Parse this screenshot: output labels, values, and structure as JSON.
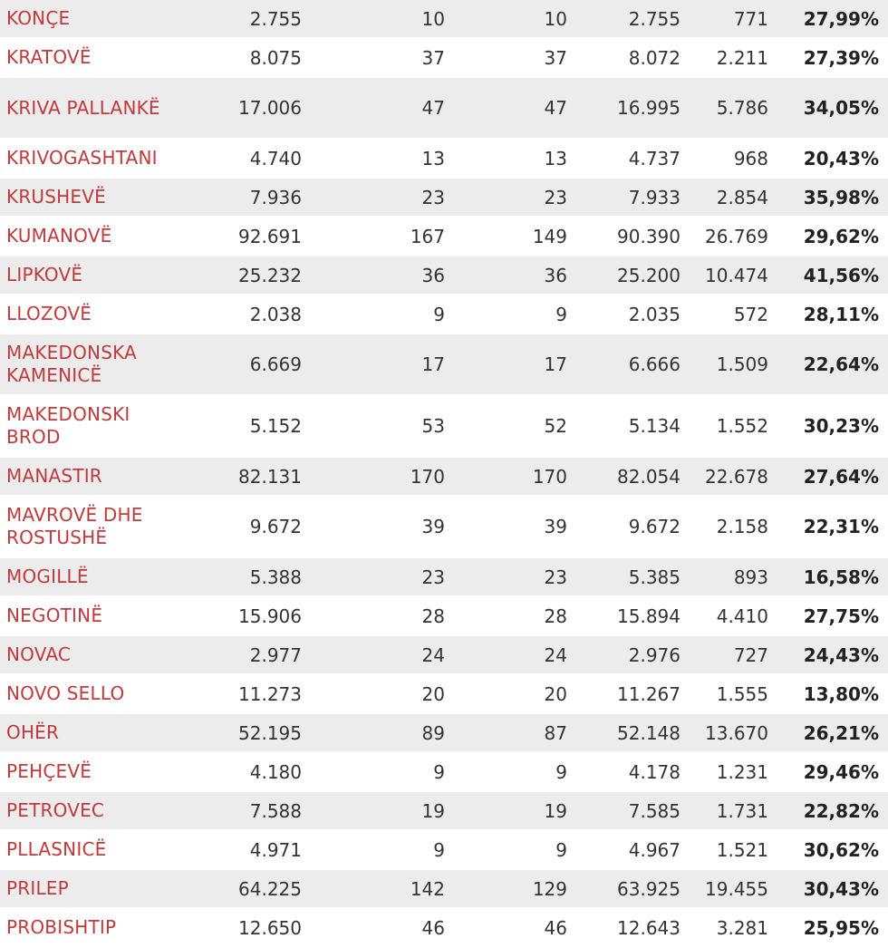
{
  "rows": [
    {
      "municipality": "KONÇE",
      "registered": "2.755",
      "stations_total": "10",
      "stations_counted": "10",
      "registered_counted": "2.755",
      "voted": "771",
      "turnout": "27,99%"
    },
    {
      "municipality": "KRATOVË",
      "registered": "8.075",
      "stations_total": "37",
      "stations_counted": "37",
      "registered_counted": "8.072",
      "voted": "2.211",
      "turnout": "27,39%"
    },
    {
      "municipality": "KRIVA PALLANKË",
      "registered": "17.006",
      "stations_total": "47",
      "stations_counted": "47",
      "registered_counted": "16.995",
      "voted": "5.786",
      "turnout": "34,05%"
    },
    {
      "municipality": "KRIVOGASHTANI",
      "registered": "4.740",
      "stations_total": "13",
      "stations_counted": "13",
      "registered_counted": "4.737",
      "voted": "968",
      "turnout": "20,43%"
    },
    {
      "municipality": "KRUSHEVË",
      "registered": "7.936",
      "stations_total": "23",
      "stations_counted": "23",
      "registered_counted": "7.933",
      "voted": "2.854",
      "turnout": "35,98%"
    },
    {
      "municipality": "KUMANOVË",
      "registered": "92.691",
      "stations_total": "167",
      "stations_counted": "149",
      "registered_counted": "90.390",
      "voted": "26.769",
      "turnout": "29,62%"
    },
    {
      "municipality": "LIPKOVË",
      "registered": "25.232",
      "stations_total": "36",
      "stations_counted": "36",
      "registered_counted": "25.200",
      "voted": "10.474",
      "turnout": "41,56%"
    },
    {
      "municipality": "LLOZOVË",
      "registered": "2.038",
      "stations_total": "9",
      "stations_counted": "9",
      "registered_counted": "2.035",
      "voted": "572",
      "turnout": "28,11%"
    },
    {
      "municipality": "MAKEDONSKA KAMENICË",
      "registered": "6.669",
      "stations_total": "17",
      "stations_counted": "17",
      "registered_counted": "6.666",
      "voted": "1.509",
      "turnout": "22,64%"
    },
    {
      "municipality": "MAKEDONSKI BROD",
      "registered": "5.152",
      "stations_total": "53",
      "stations_counted": "52",
      "registered_counted": "5.134",
      "voted": "1.552",
      "turnout": "30,23%"
    },
    {
      "municipality": "MANASTIR",
      "registered": "82.131",
      "stations_total": "170",
      "stations_counted": "170",
      "registered_counted": "82.054",
      "voted": "22.678",
      "turnout": "27,64%"
    },
    {
      "municipality": "MAVROVË DHE ROSTUSHË",
      "registered": "9.672",
      "stations_total": "39",
      "stations_counted": "39",
      "registered_counted": "9.672",
      "voted": "2.158",
      "turnout": "22,31%"
    },
    {
      "municipality": "MOGILLË",
      "registered": "5.388",
      "stations_total": "23",
      "stations_counted": "23",
      "registered_counted": "5.385",
      "voted": "893",
      "turnout": "16,58%"
    },
    {
      "municipality": "NEGOTINË",
      "registered": "15.906",
      "stations_total": "28",
      "stations_counted": "28",
      "registered_counted": "15.894",
      "voted": "4.410",
      "turnout": "27,75%"
    },
    {
      "municipality": "NOVAC",
      "registered": "2.977",
      "stations_total": "24",
      "stations_counted": "24",
      "registered_counted": "2.976",
      "voted": "727",
      "turnout": "24,43%"
    },
    {
      "municipality": "NOVO SELLO",
      "registered": "11.273",
      "stations_total": "20",
      "stations_counted": "20",
      "registered_counted": "11.267",
      "voted": "1.555",
      "turnout": "13,80%"
    },
    {
      "municipality": "OHËR",
      "registered": "52.195",
      "stations_total": "89",
      "stations_counted": "87",
      "registered_counted": "52.148",
      "voted": "13.670",
      "turnout": "26,21%"
    },
    {
      "municipality": "PEHÇEVË",
      "registered": "4.180",
      "stations_total": "9",
      "stations_counted": "9",
      "registered_counted": "4.178",
      "voted": "1.231",
      "turnout": "29,46%"
    },
    {
      "municipality": "PETROVEC",
      "registered": "7.588",
      "stations_total": "19",
      "stations_counted": "19",
      "registered_counted": "7.585",
      "voted": "1.731",
      "turnout": "22,82%"
    },
    {
      "municipality": "PLLASNICË",
      "registered": "4.971",
      "stations_total": "9",
      "stations_counted": "9",
      "registered_counted": "4.967",
      "voted": "1.521",
      "turnout": "30,62%"
    },
    {
      "municipality": "PRILEP",
      "registered": "64.225",
      "stations_total": "142",
      "stations_counted": "129",
      "registered_counted": "63.925",
      "voted": "19.455",
      "turnout": "30,43%"
    },
    {
      "municipality": "PROBISHTIP",
      "registered": "12.650",
      "stations_total": "46",
      "stations_counted": "46",
      "registered_counted": "12.643",
      "voted": "3.281",
      "turnout": "25,95%"
    }
  ],
  "colors": {
    "link": "#c0393b",
    "row_shaded": "#ececec",
    "row_plain": "#ffffff",
    "text": "#333333"
  }
}
